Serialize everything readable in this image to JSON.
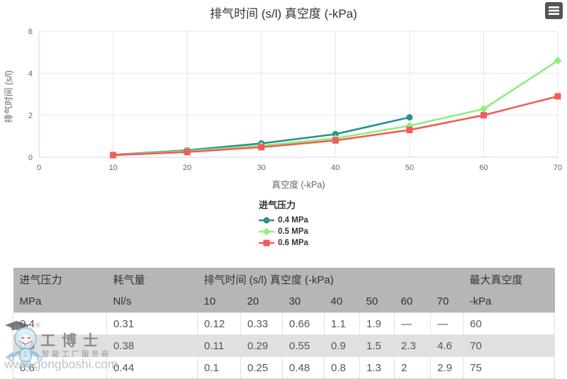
{
  "chart_data": {
    "type": "line",
    "title": "排气时间 (s/l) 真空度 (-kPa)",
    "xlabel": "真空度 (-kPa)",
    "ylabel": "排气时间 (s/l)",
    "legend_title": "进气压力",
    "legend_position": "bottom-center",
    "grid": true,
    "x": [
      10,
      20,
      30,
      40,
      50,
      60,
      70
    ],
    "x_ticks": [
      0,
      10,
      20,
      30,
      40,
      50,
      60,
      70
    ],
    "y_ticks": [
      0,
      2,
      4,
      6
    ],
    "xlim": [
      0,
      70
    ],
    "ylim": [
      0,
      6
    ],
    "series": [
      {
        "name": "0.4 MPa",
        "color": "#2b908f",
        "marker": "circle",
        "values": [
          0.12,
          0.33,
          0.66,
          1.1,
          1.9,
          null,
          null
        ]
      },
      {
        "name": "0.5 MPa",
        "color": "#90ed7d",
        "marker": "diamond",
        "values": [
          0.11,
          0.29,
          0.55,
          0.9,
          1.5,
          2.3,
          4.6
        ]
      },
      {
        "name": "0.6 MPa",
        "color": "#f45b5b",
        "marker": "square",
        "values": [
          0.1,
          0.25,
          0.48,
          0.8,
          1.3,
          2,
          2.9
        ]
      }
    ]
  },
  "export_menu": {
    "icon": "hamburger-menu-icon"
  },
  "table": {
    "header_groups": [
      {
        "label": "进气压力",
        "span": 1
      },
      {
        "label": "耗气量",
        "span": 1
      },
      {
        "label": "排气时间 (s/l) 真空度 (-kPa)",
        "span": 7
      },
      {
        "label": "最大真空度",
        "span": 1
      }
    ],
    "header_units": [
      "MPa",
      "Nl/s",
      "10",
      "20",
      "30",
      "40",
      "50",
      "60",
      "70",
      "-kPa"
    ],
    "rows": [
      [
        "0.4",
        "0.31",
        "0.12",
        "0.33",
        "0.66",
        "1.1",
        "1.9",
        "—",
        "—",
        "60"
      ],
      [
        "0.5",
        "0.38",
        "0.11",
        "0.29",
        "0.55",
        "0.9",
        "1.5",
        "2.3",
        "4.6",
        "70"
      ],
      [
        "0.6",
        "0.44",
        "0.1",
        "0.25",
        "0.48",
        "0.8",
        "1.3",
        "2",
        "2.9",
        "75"
      ]
    ]
  },
  "watermark": {
    "brand": "工博士",
    "registered": "®",
    "tagline": "智能工厂服务商",
    "url": "www.gongboshi.com"
  },
  "colors": {
    "series_teal": "#2b908f",
    "series_green": "#90ed7d",
    "series_red": "#f45b5b",
    "grid_line": "#e6e6e6",
    "axis_line": "#ccd6eb",
    "tick_text": "#666666",
    "table_header_bg": "#b6b6b6",
    "table_stripe_bg": "#e0e0e0"
  }
}
